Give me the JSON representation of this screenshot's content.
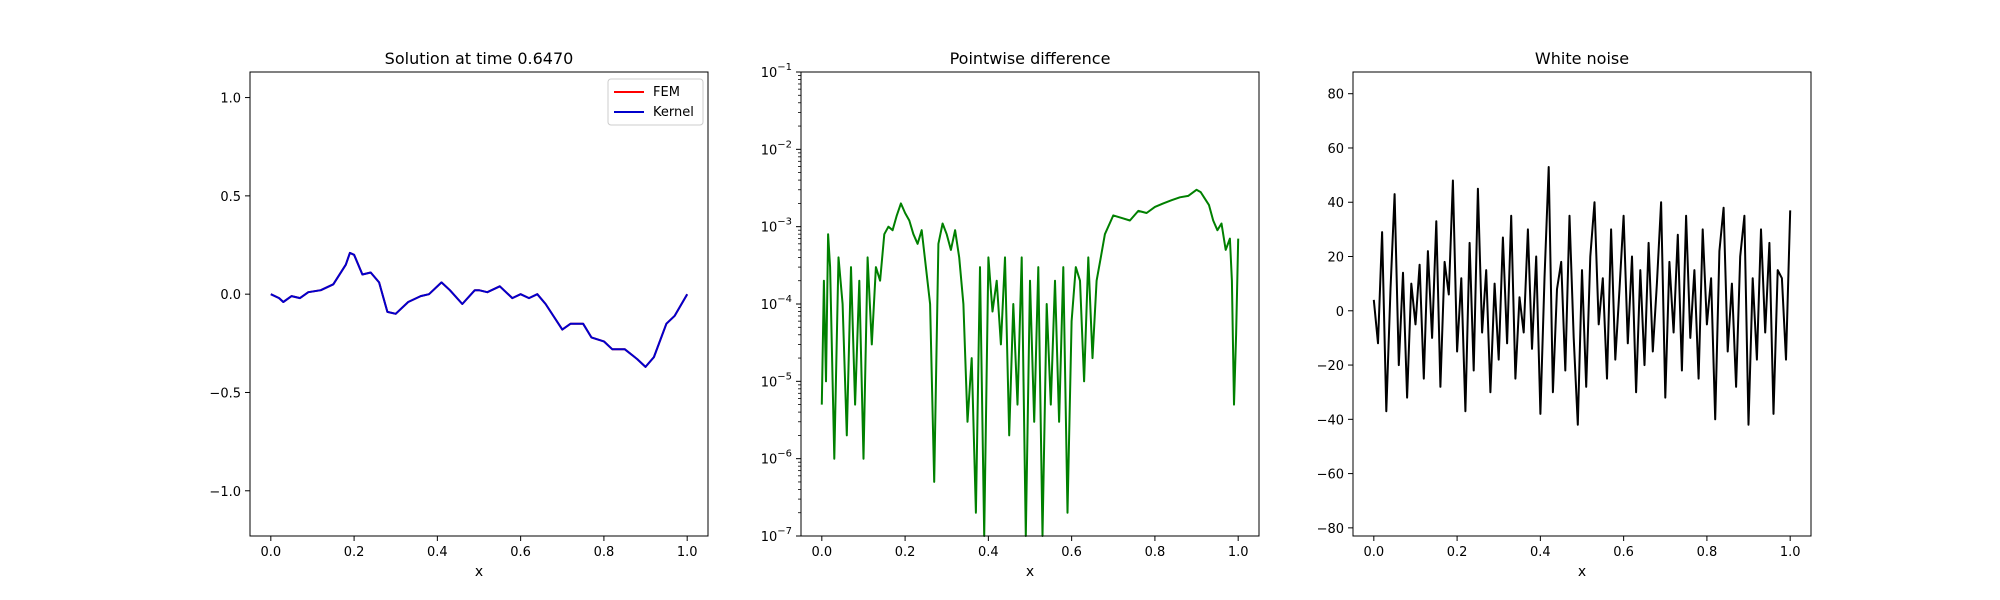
{
  "colors": {
    "fem": "#ff0000",
    "kernel": "#0000cc",
    "difference": "#008000",
    "noise": "#000000"
  },
  "chart_data": [
    {
      "type": "line",
      "title": "Solution at time 0.6470",
      "xlabel": "x",
      "ylabel": "",
      "xlim": [
        -0.05,
        1.05
      ],
      "ylim": [
        -1.23,
        1.13
      ],
      "xticks": [
        0.0,
        0.2,
        0.4,
        0.6,
        0.8,
        1.0
      ],
      "xtick_labels": [
        "0.0",
        "0.2",
        "0.4",
        "0.6",
        "0.8",
        "1.0"
      ],
      "yticks": [
        -1.0,
        -0.5,
        0.0,
        0.5,
        1.0
      ],
      "ytick_labels": [
        "−1.0",
        "−0.5",
        "0.0",
        "0.5",
        "1.0"
      ],
      "legend": {
        "position": "top-right",
        "entries": [
          "FEM",
          "Kernel"
        ]
      },
      "series": [
        {
          "name": "FEM",
          "x": [
            0,
            0.02,
            0.03,
            0.05,
            0.07,
            0.09,
            0.12,
            0.15,
            0.18,
            0.19,
            0.2,
            0.22,
            0.24,
            0.26,
            0.28,
            0.3,
            0.33,
            0.36,
            0.38,
            0.41,
            0.43,
            0.46,
            0.49,
            0.5,
            0.52,
            0.55,
            0.58,
            0.6,
            0.62,
            0.64,
            0.66,
            0.7,
            0.72,
            0.75,
            0.77,
            0.8,
            0.82,
            0.85,
            0.88,
            0.9,
            0.92,
            0.95,
            0.97,
            1.0
          ],
          "y": [
            0,
            -0.02,
            -0.04,
            -0.01,
            -0.02,
            0.01,
            0.02,
            0.05,
            0.15,
            0.21,
            0.2,
            0.1,
            0.11,
            0.06,
            -0.09,
            -0.1,
            -0.04,
            -0.01,
            0.0,
            0.06,
            0.02,
            -0.05,
            0.02,
            0.02,
            0.01,
            0.04,
            -0.02,
            0.0,
            -0.02,
            0.0,
            -0.05,
            -0.18,
            -0.15,
            -0.15,
            -0.22,
            -0.24,
            -0.28,
            -0.28,
            -0.33,
            -0.37,
            -0.32,
            -0.15,
            -0.11,
            0.0
          ]
        },
        {
          "name": "Kernel",
          "x": [
            0,
            0.02,
            0.03,
            0.05,
            0.07,
            0.09,
            0.12,
            0.15,
            0.18,
            0.19,
            0.2,
            0.22,
            0.24,
            0.26,
            0.28,
            0.3,
            0.33,
            0.36,
            0.38,
            0.41,
            0.43,
            0.46,
            0.49,
            0.5,
            0.52,
            0.55,
            0.58,
            0.6,
            0.62,
            0.64,
            0.66,
            0.7,
            0.72,
            0.75,
            0.77,
            0.8,
            0.82,
            0.85,
            0.88,
            0.9,
            0.92,
            0.95,
            0.97,
            1.0
          ],
          "y": [
            0,
            -0.02,
            -0.04,
            -0.01,
            -0.02,
            0.01,
            0.02,
            0.05,
            0.15,
            0.21,
            0.2,
            0.1,
            0.11,
            0.06,
            -0.09,
            -0.1,
            -0.04,
            -0.01,
            0.0,
            0.06,
            0.02,
            -0.05,
            0.02,
            0.02,
            0.01,
            0.04,
            -0.02,
            0.0,
            -0.02,
            0.0,
            -0.05,
            -0.18,
            -0.15,
            -0.15,
            -0.22,
            -0.24,
            -0.28,
            -0.28,
            -0.33,
            -0.37,
            -0.32,
            -0.15,
            -0.11,
            0.0
          ]
        }
      ]
    },
    {
      "type": "line",
      "title": "Pointwise difference",
      "xlabel": "x",
      "ylabel": "",
      "yscale": "log",
      "xlim": [
        -0.05,
        1.05
      ],
      "ylim": [
        1e-07,
        0.1
      ],
      "xticks": [
        0.0,
        0.2,
        0.4,
        0.6,
        0.8,
        1.0
      ],
      "xtick_labels": [
        "0.0",
        "0.2",
        "0.4",
        "0.6",
        "0.8",
        "1.0"
      ],
      "yticks": [
        1e-07,
        1e-06,
        1e-05,
        0.0001,
        0.001,
        0.01,
        0.1
      ],
      "ytick_bases": [
        "10",
        "10",
        "10",
        "10",
        "10",
        "10",
        "10"
      ],
      "ytick_exponents": [
        "−7",
        "−6",
        "−5",
        "−4",
        "−3",
        "−2",
        "−1"
      ],
      "series": [
        {
          "x": [
            0.0,
            0.005,
            0.01,
            0.015,
            0.02,
            0.03,
            0.04,
            0.05,
            0.06,
            0.07,
            0.08,
            0.09,
            0.1,
            0.11,
            0.12,
            0.13,
            0.14,
            0.15,
            0.16,
            0.17,
            0.18,
            0.19,
            0.2,
            0.21,
            0.22,
            0.23,
            0.24,
            0.25,
            0.26,
            0.27,
            0.28,
            0.29,
            0.3,
            0.31,
            0.32,
            0.33,
            0.34,
            0.35,
            0.36,
            0.37,
            0.38,
            0.39,
            0.4,
            0.41,
            0.42,
            0.43,
            0.44,
            0.45,
            0.46,
            0.47,
            0.48,
            0.49,
            0.5,
            0.51,
            0.52,
            0.53,
            0.54,
            0.55,
            0.56,
            0.57,
            0.58,
            0.59,
            0.6,
            0.61,
            0.62,
            0.63,
            0.64,
            0.65,
            0.66,
            0.67,
            0.68,
            0.7,
            0.72,
            0.74,
            0.76,
            0.78,
            0.8,
            0.82,
            0.84,
            0.86,
            0.88,
            0.9,
            0.91,
            0.92,
            0.93,
            0.94,
            0.95,
            0.96,
            0.97,
            0.98,
            0.985,
            0.99,
            0.995,
            1.0
          ],
          "y": [
            5e-06,
            0.0002,
            1e-05,
            0.0008,
            0.0003,
            1e-06,
            0.0004,
            0.0001,
            2e-06,
            0.0003,
            5e-06,
            0.0002,
            1e-06,
            0.0004,
            3e-05,
            0.0003,
            0.0002,
            0.0008,
            0.001,
            0.0009,
            0.0014,
            0.002,
            0.0015,
            0.0012,
            0.0008,
            0.0006,
            0.0009,
            0.0003,
            0.0001,
            5e-07,
            0.0006,
            0.0011,
            0.0008,
            0.0005,
            0.0009,
            0.0004,
            0.0001,
            3e-06,
            2e-05,
            2e-07,
            0.0003,
            1e-07,
            0.0004,
            8e-05,
            0.0002,
            3e-05,
            0.0004,
            2e-06,
            0.0001,
            5e-06,
            0.0004,
            1e-07,
            0.0002,
            3e-06,
            0.0003,
            1e-07,
            0.0001,
            5e-06,
            0.0002,
            3e-06,
            0.0003,
            2e-07,
            6e-05,
            0.0003,
            0.0002,
            1e-05,
            0.0004,
            2e-05,
            0.0002,
            0.0004,
            0.0008,
            0.0014,
            0.0013,
            0.0012,
            0.0016,
            0.0015,
            0.0018,
            0.002,
            0.0022,
            0.0024,
            0.0025,
            0.003,
            0.0028,
            0.0023,
            0.0019,
            0.0012,
            0.0009,
            0.0011,
            0.0005,
            0.0007,
            0.0002,
            5e-06,
            4e-05,
            0.0007
          ]
        }
      ]
    },
    {
      "type": "line",
      "title": "White noise",
      "xlabel": "x",
      "ylabel": "",
      "xlim": [
        -0.05,
        1.05
      ],
      "ylim": [
        -83,
        88
      ],
      "xticks": [
        0.0,
        0.2,
        0.4,
        0.6,
        0.8,
        1.0
      ],
      "xtick_labels": [
        "0.0",
        "0.2",
        "0.4",
        "0.6",
        "0.8",
        "1.0"
      ],
      "yticks": [
        -80,
        -60,
        -40,
        -20,
        0,
        20,
        40,
        60,
        80
      ],
      "ytick_labels": [
        "−80",
        "−60",
        "−40",
        "−20",
        "0",
        "20",
        "40",
        "60",
        "80"
      ],
      "series": [
        {
          "x": [
            0.0,
            0.01,
            0.02,
            0.03,
            0.04,
            0.05,
            0.06,
            0.07,
            0.08,
            0.09,
            0.1,
            0.11,
            0.12,
            0.13,
            0.14,
            0.15,
            0.16,
            0.17,
            0.18,
            0.19,
            0.2,
            0.21,
            0.22,
            0.23,
            0.24,
            0.25,
            0.26,
            0.27,
            0.28,
            0.29,
            0.3,
            0.31,
            0.32,
            0.33,
            0.34,
            0.35,
            0.36,
            0.37,
            0.38,
            0.39,
            0.4,
            0.41,
            0.42,
            0.43,
            0.44,
            0.45,
            0.46,
            0.47,
            0.48,
            0.49,
            0.5,
            0.51,
            0.52,
            0.53,
            0.54,
            0.55,
            0.56,
            0.57,
            0.58,
            0.59,
            0.6,
            0.61,
            0.62,
            0.63,
            0.64,
            0.65,
            0.66,
            0.67,
            0.68,
            0.69,
            0.7,
            0.71,
            0.72,
            0.73,
            0.74,
            0.75,
            0.76,
            0.77,
            0.78,
            0.79,
            0.8,
            0.81,
            0.82,
            0.83,
            0.84,
            0.85,
            0.86,
            0.87,
            0.88,
            0.89,
            0.9,
            0.91,
            0.92,
            0.93,
            0.94,
            0.95,
            0.96,
            0.97,
            0.98,
            0.99,
            1.0
          ],
          "y": [
            4,
            -12,
            29,
            -37,
            8,
            43,
            -20,
            14,
            -32,
            10,
            -5,
            17,
            -25,
            22,
            -10,
            33,
            -28,
            18,
            6,
            48,
            -15,
            12,
            -37,
            25,
            -22,
            45,
            -8,
            15,
            -30,
            10,
            -18,
            27,
            -12,
            35,
            -25,
            5,
            -8,
            30,
            -14,
            20,
            -38,
            12,
            53,
            -30,
            8,
            18,
            -22,
            35,
            -10,
            -42,
            15,
            -28,
            20,
            40,
            -5,
            12,
            -25,
            30,
            -18,
            8,
            35,
            -12,
            20,
            -30,
            15,
            -20,
            25,
            -15,
            10,
            40,
            -32,
            18,
            -8,
            28,
            -22,
            35,
            -10,
            15,
            -25,
            30,
            -5,
            12,
            -40,
            22,
            38,
            -15,
            10,
            -28,
            20,
            35,
            -42,
            12,
            -18,
            30,
            -8,
            25,
            -38,
            15,
            12,
            -18,
            37
          ]
        }
      ]
    }
  ]
}
